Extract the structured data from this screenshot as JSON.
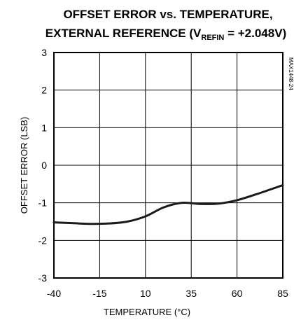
{
  "chart_data": {
    "type": "line",
    "title_line1": "OFFSET ERROR vs. TEMPERATURE,",
    "title_line2_prefix": "EXTERNAL REFERENCE (V",
    "title_line2_sub": "REFIN",
    "title_line2_suffix": " = +2.048V)",
    "xlabel": "TEMPERATURE (°C)",
    "ylabel": "OFFSET ERROR (LSB)",
    "part_code": "MAX1448-24",
    "xlim": [
      -40,
      85
    ],
    "ylim": [
      -3,
      3
    ],
    "x_ticks": [
      -40,
      -15,
      10,
      35,
      60,
      85
    ],
    "x_tick_labels": [
      "-40",
      "-15",
      "10",
      "35",
      "60",
      "85"
    ],
    "y_ticks": [
      3,
      2,
      1,
      0,
      -1,
      -2,
      -3
    ],
    "y_tick_labels": [
      "3",
      "2",
      "1",
      "0",
      "-1",
      "-2",
      "-3"
    ],
    "grid": true,
    "series": [
      {
        "x": [
          -40,
          -30,
          -20,
          -10,
          0,
          10,
          20,
          30,
          40,
          50,
          60,
          70,
          85
        ],
        "y": [
          -1.52,
          -1.54,
          -1.56,
          -1.55,
          -1.5,
          -1.36,
          -1.12,
          -1.0,
          -1.03,
          -1.02,
          -0.93,
          -0.78,
          -0.53
        ]
      }
    ]
  }
}
